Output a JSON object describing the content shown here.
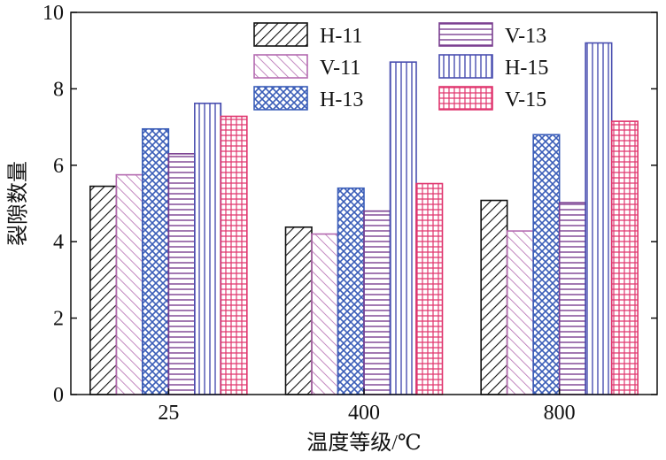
{
  "chart_data": {
    "type": "bar",
    "xlabel": "温度等级/℃",
    "ylabel": "裂隙数量",
    "categories": [
      "25",
      "400",
      "800"
    ],
    "ylim": [
      0,
      10
    ],
    "yticks": [
      "0",
      "2",
      "4",
      "6",
      "8",
      "10"
    ],
    "grid": false,
    "legend_position": "top-right",
    "series": [
      {
        "name": "H-11",
        "values": [
          5.45,
          4.38,
          5.08
        ],
        "color": "#111111",
        "pattern": "diagonal-hatch"
      },
      {
        "name": "V-11",
        "values": [
          5.75,
          4.2,
          4.28
        ],
        "color": "#b46ab0",
        "pattern": "back-diagonal-hatch"
      },
      {
        "name": "H-13",
        "values": [
          6.95,
          5.4,
          6.8
        ],
        "color": "#3a5db8",
        "pattern": "crosshatch"
      },
      {
        "name": "V-13",
        "values": [
          6.3,
          4.8,
          5.02
        ],
        "color": "#7a3f90",
        "pattern": "horizontal-lines"
      },
      {
        "name": "H-15",
        "values": [
          7.62,
          8.7,
          9.2
        ],
        "color": "#4a4fb0",
        "pattern": "vertical-lines"
      },
      {
        "name": "V-15",
        "values": [
          7.28,
          5.52,
          7.15
        ],
        "color": "#e0356e",
        "pattern": "grid"
      }
    ],
    "legend_order": [
      0,
      3,
      1,
      4,
      2,
      5
    ]
  }
}
